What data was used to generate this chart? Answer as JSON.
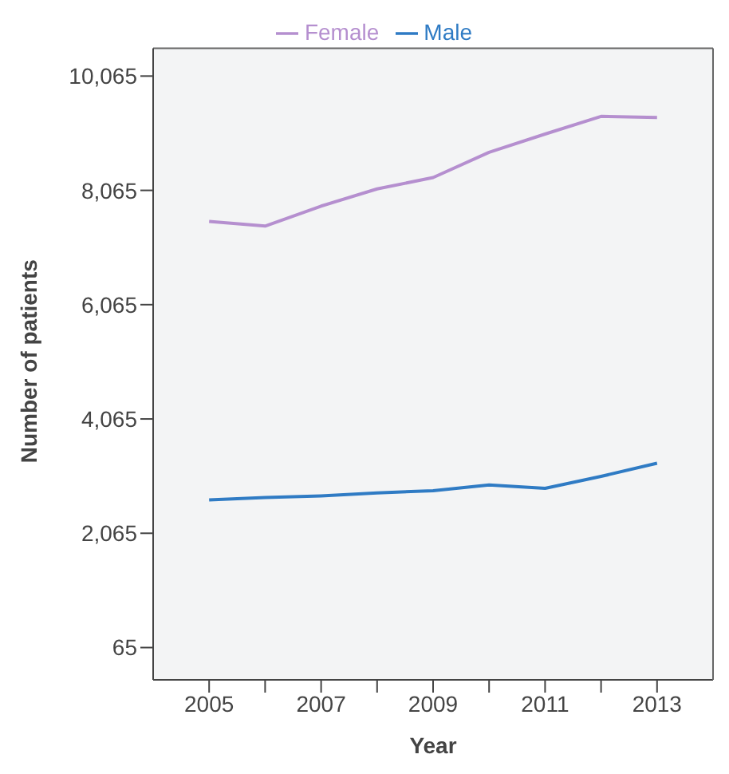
{
  "chart_data": {
    "type": "line",
    "xlabel": "Year",
    "ylabel": "Number of patients",
    "x": [
      2005,
      2006,
      2007,
      2008,
      2009,
      2010,
      2011,
      2012,
      2013
    ],
    "series": [
      {
        "name": "Female",
        "color": "#b58fcf",
        "values": [
          7520,
          7440,
          7790,
          8090,
          8290,
          8730,
          9050,
          9360,
          9340
        ]
      },
      {
        "name": "Male",
        "color": "#2f7bc4",
        "values": [
          2650,
          2690,
          2720,
          2770,
          2810,
          2910,
          2850,
          3060,
          3290
        ]
      }
    ],
    "xlim": [
      2004,
      2014
    ],
    "xticks": [
      2005,
      {
        "value": 2006,
        "label": null
      },
      2007,
      {
        "value": 2008,
        "label": null
      },
      2009,
      {
        "value": 2010,
        "label": null
      },
      2011,
      {
        "value": 2012,
        "label": null
      },
      2013
    ],
    "ylim": [
      -500,
      10550
    ],
    "yticks": [
      {
        "value": 65,
        "label": "65"
      },
      {
        "value": 2065,
        "label": "2,065"
      },
      {
        "value": 4065,
        "label": "4,065"
      },
      {
        "value": 6065,
        "label": "6,065"
      },
      {
        "value": 8065,
        "label": "8,065"
      },
      {
        "value": 10065,
        "label": "10,065"
      }
    ],
    "legend": "top",
    "marker": "none",
    "line_style": "solid"
  }
}
